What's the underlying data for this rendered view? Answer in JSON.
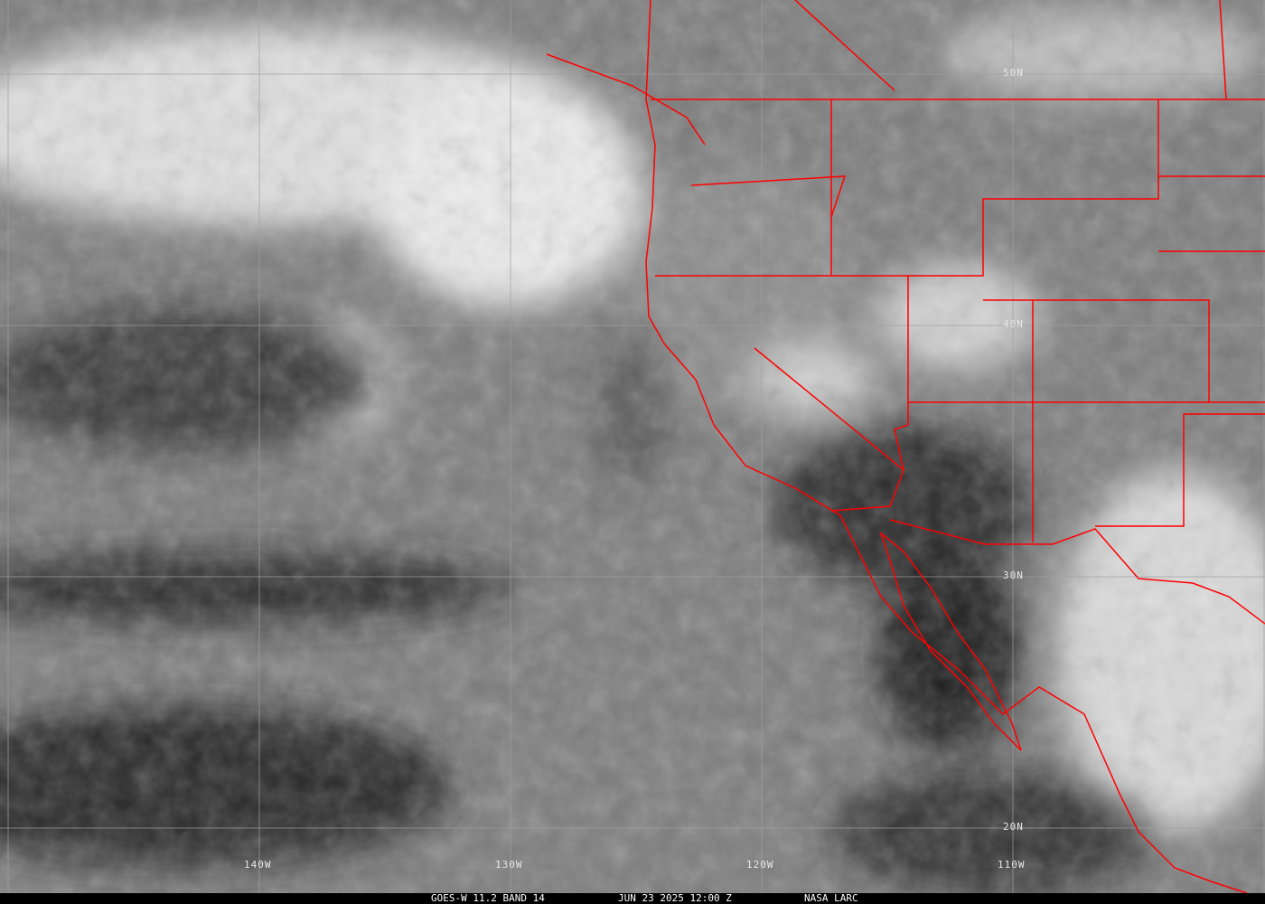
{
  "image": {
    "type": "satellite infrared imagery",
    "colors": {
      "borders": "#ff0000",
      "grid": "#a0a0a0",
      "caption_bg": "#000000",
      "caption_text": "#ffffff"
    }
  },
  "grid": {
    "longitude_labels": [
      "140W",
      "130W",
      "120W",
      "110W"
    ],
    "latitude_labels": [
      "50N",
      "40N",
      "30N",
      "20N"
    ]
  },
  "caption": {
    "satellite": "GOES-W 11.2 BAND 14",
    "datetime": "JUN 23 2025 12:00 Z",
    "source": "NASA LARC"
  }
}
